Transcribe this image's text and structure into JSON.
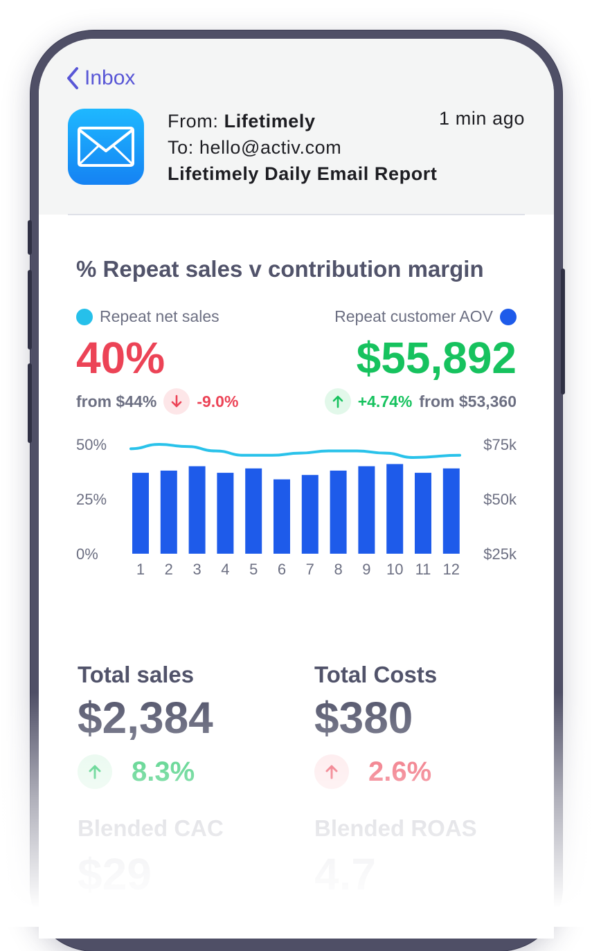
{
  "mail": {
    "back_label": "Inbox",
    "from_prefix": "From: ",
    "from_name": "Lifetimely",
    "to_line": "To: hello@activ.com",
    "subject": "Lifetimely Daily Email Report",
    "time": "1 min ago"
  },
  "chart_data": {
    "type": "bar",
    "title": "% Repeat sales v contribution margin",
    "categories": [
      "1",
      "2",
      "3",
      "4",
      "5",
      "6",
      "7",
      "8",
      "9",
      "10",
      "11",
      "12"
    ],
    "series": [
      {
        "name": "Repeat net sales",
        "axis": "left",
        "type": "bar",
        "values": [
          37,
          38,
          40,
          37,
          39,
          34,
          36,
          38,
          40,
          41,
          37,
          39
        ],
        "color": "#1e5bea"
      },
      {
        "name": "Repeat customer AOV",
        "axis": "right",
        "type": "line",
        "values": [
          73,
          75,
          74,
          72,
          70,
          70,
          71,
          72,
          72,
          71,
          69,
          70
        ],
        "color": "#29c2ea"
      }
    ],
    "left_axis": {
      "ticks": [
        "50%",
        "25%",
        "0%"
      ],
      "ylim": [
        0,
        50
      ]
    },
    "right_axis": {
      "ticks": [
        "$75k",
        "$50k",
        "$25k"
      ],
      "ylim": [
        25,
        75
      ]
    }
  },
  "kpi_left": {
    "legend": "Repeat net sales",
    "legend_color": "#26c0ea",
    "value": "40%",
    "value_color": "#ec4356",
    "from": "from $44%",
    "change": "-9.0%",
    "direction": "down",
    "change_color": "#ec4356"
  },
  "kpi_right": {
    "legend": "Repeat customer AOV",
    "legend_color": "#1e5bea",
    "value": "$55,892",
    "value_color": "#16c25e",
    "from": "from $53,360",
    "change": "+4.74%",
    "direction": "up",
    "change_color": "#16c25e"
  },
  "stats": {
    "total_sales": {
      "label": "Total sales",
      "value": "$2,384",
      "change": "8.3%",
      "direction": "up",
      "color": "#16c25e"
    },
    "total_costs": {
      "label": "Total Costs",
      "value": "$380",
      "change": "2.6%",
      "direction": "up",
      "color": "#ec4356"
    },
    "blended_cac": {
      "label": "Blended CAC",
      "value": "$29"
    },
    "blended_roas": {
      "label": "Blended ROAS",
      "value": "4.7"
    }
  },
  "colors": {
    "accent": "#5856d6",
    "text_dark": "#51536a",
    "green": "#16c25e",
    "red": "#ec4356",
    "bar_blue": "#1e5bea",
    "line_cyan": "#29c2ea"
  }
}
